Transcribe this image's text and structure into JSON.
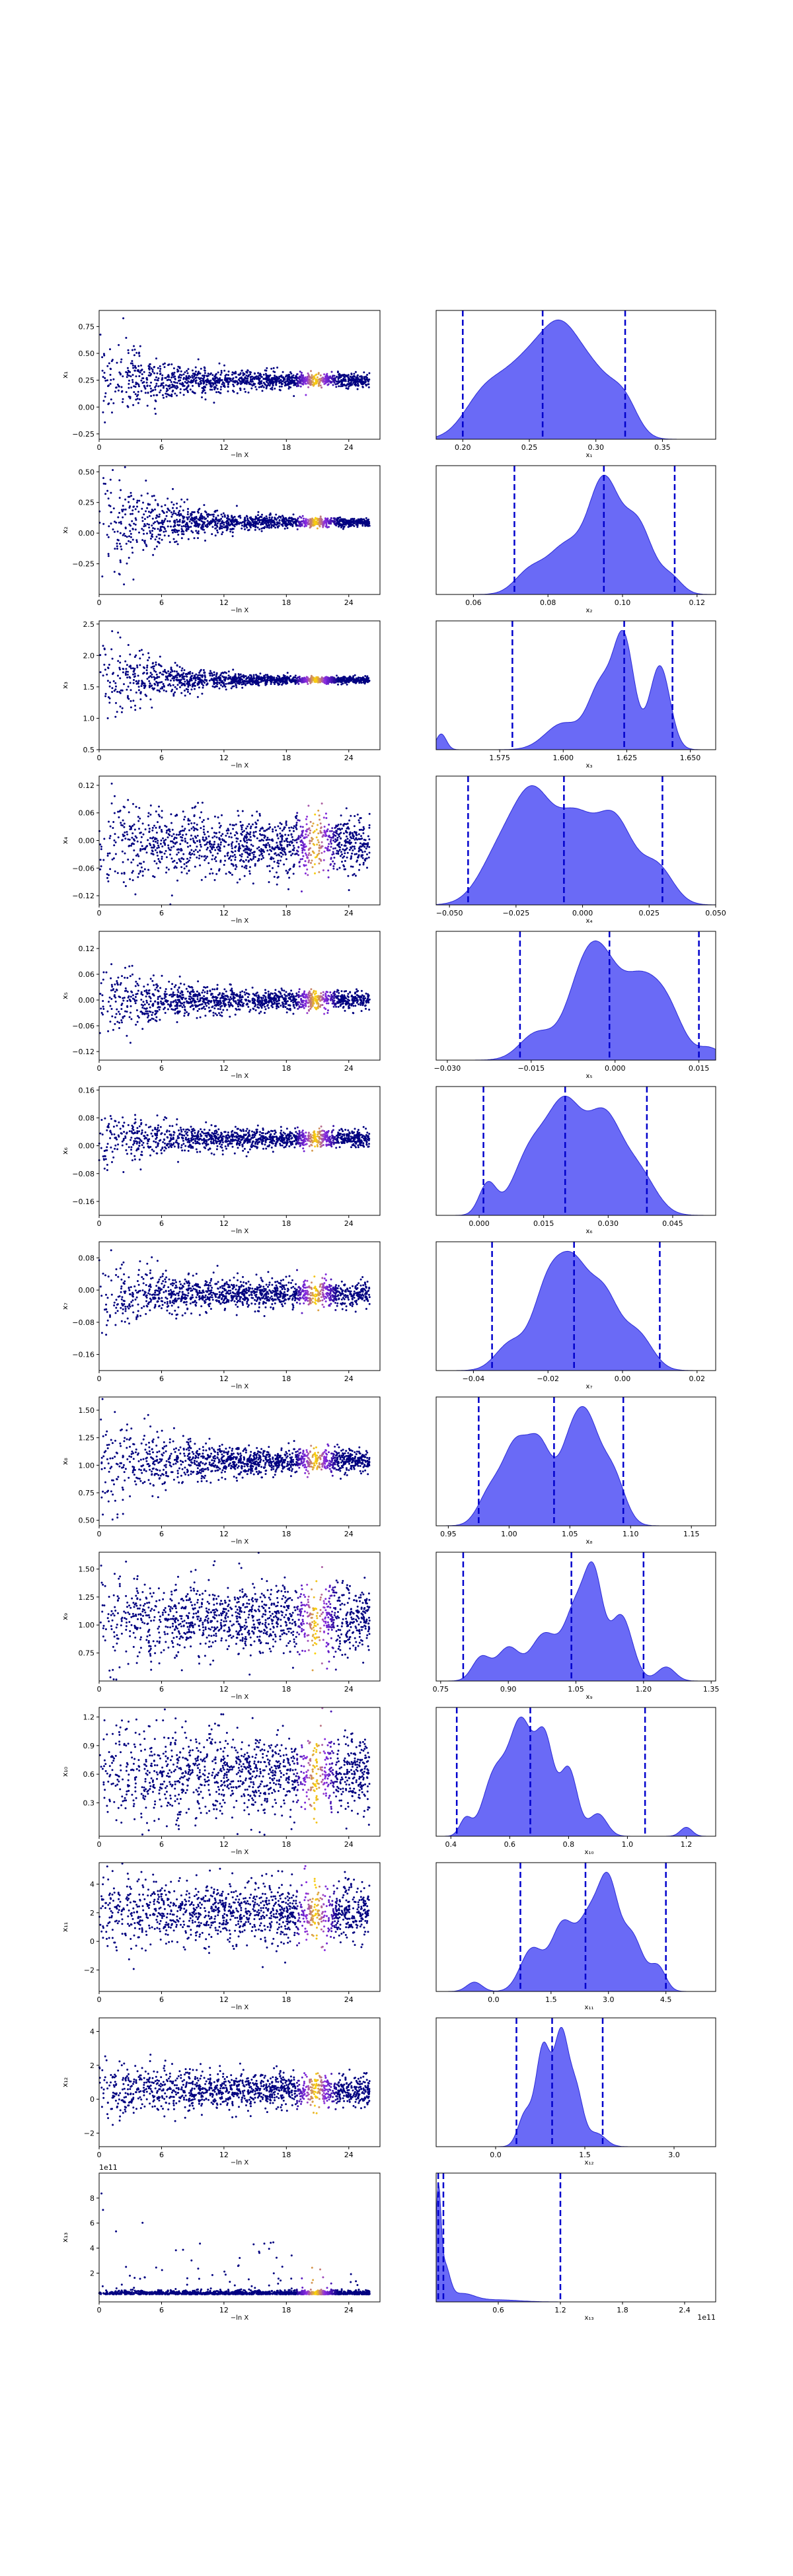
{
  "colors": {
    "scatter_low": "#000080",
    "scatter_mid": "#8a2be2",
    "scatter_high": "#ffd700",
    "density_fill": "#5a5af5",
    "density_line": "#2b2bd6",
    "quantile_line": "#0000cc"
  },
  "chart_data": [
    {
      "type": "scatter",
      "xlabel": "−ln X",
      "ylabel": "x₁",
      "xlim": [
        0,
        27
      ],
      "ylim": [
        -0.3,
        0.9
      ],
      "xticks": [
        "0",
        "6",
        "12",
        "18",
        "24"
      ],
      "yticks": [
        "0.75",
        "0.50",
        "0.25",
        "0.00",
        "−0.25"
      ],
      "ytick_values": [
        0.75,
        0.5,
        0.25,
        0.0,
        -0.25
      ],
      "center": 0.25,
      "spread0": 0.25,
      "spread1": 0.03,
      "density": {
        "xlabel": "x₁",
        "xlim": [
          0.18,
          0.39
        ],
        "xticks": [
          "0.20",
          "0.25",
          "0.30",
          "0.35"
        ],
        "xtick_values": [
          0.2,
          0.25,
          0.3,
          0.35
        ],
        "quantiles": [
          0.2,
          0.26,
          0.322
        ],
        "peaks": [
          [
            0.215,
            0.45,
            0.015
          ],
          [
            0.25,
            0.95,
            0.02
          ],
          [
            0.275,
            0.85,
            0.014
          ],
          [
            0.3,
            0.7,
            0.015
          ],
          [
            0.322,
            0.35,
            0.01
          ]
        ]
      }
    },
    {
      "type": "scatter",
      "xlabel": "−ln X",
      "ylabel": "x₂",
      "xlim": [
        0,
        27
      ],
      "ylim": [
        -0.5,
        0.55
      ],
      "xticks": [
        "0",
        "6",
        "12",
        "18",
        "24"
      ],
      "yticks": [
        "0.50",
        "0.25",
        "0.00",
        "−0.25"
      ],
      "ytick_values": [
        0.5,
        0.25,
        0.0,
        -0.25
      ],
      "center": 0.09,
      "spread0": 0.3,
      "spread1": 0.015,
      "density": {
        "xlabel": "x₂",
        "xlim": [
          0.05,
          0.125
        ],
        "xticks": [
          "0.06",
          "0.08",
          "0.10",
          "0.12"
        ],
        "xtick_values": [
          0.06,
          0.08,
          0.1,
          0.12
        ],
        "quantiles": [
          0.071,
          0.095,
          0.114
        ],
        "peaks": [
          [
            0.075,
            0.2,
            0.004
          ],
          [
            0.085,
            0.45,
            0.005
          ],
          [
            0.095,
            1.0,
            0.004
          ],
          [
            0.104,
            0.65,
            0.004
          ],
          [
            0.113,
            0.15,
            0.003
          ]
        ]
      }
    },
    {
      "type": "scatter",
      "xlabel": "−ln X",
      "ylabel": "x₃",
      "xlim": [
        0,
        27
      ],
      "ylim": [
        0.5,
        2.55
      ],
      "xticks": [
        "0",
        "6",
        "12",
        "18",
        "24"
      ],
      "yticks": [
        "2.5",
        "2.0",
        "1.5",
        "1.0",
        "0.5"
      ],
      "ytick_values": [
        2.5,
        2.0,
        1.5,
        1.0,
        0.5
      ],
      "center": 1.61,
      "spread0": 0.45,
      "spread1": 0.02,
      "density": {
        "xlabel": "x₃",
        "xlim": [
          1.55,
          1.66
        ],
        "xticks": [
          "1.575",
          "1.600",
          "1.625",
          "1.650"
        ],
        "xtick_values": [
          1.575,
          1.6,
          1.625,
          1.65
        ],
        "quantiles": [
          1.58,
          1.624,
          1.643
        ],
        "peaks": [
          [
            1.552,
            0.15,
            0.002
          ],
          [
            1.6,
            0.25,
            0.007
          ],
          [
            1.615,
            0.6,
            0.005
          ],
          [
            1.624,
            1.0,
            0.004
          ],
          [
            1.638,
            0.8,
            0.004
          ]
        ]
      }
    },
    {
      "type": "scatter",
      "xlabel": "−ln X",
      "ylabel": "x₄",
      "xlim": [
        0,
        27
      ],
      "ylim": [
        -0.14,
        0.14
      ],
      "xticks": [
        "0",
        "6",
        "12",
        "18",
        "24"
      ],
      "yticks": [
        "0.12",
        "0.06",
        "0.00",
        "−0.06",
        "−0.12"
      ],
      "ytick_values": [
        0.12,
        0.06,
        0.0,
        -0.06,
        -0.12
      ],
      "center": -0.01,
      "spread0": 0.06,
      "spread1": 0.03,
      "density": {
        "xlabel": "x₄",
        "xlim": [
          -0.055,
          0.05
        ],
        "xticks": [
          "−0.050",
          "−0.025",
          "0.000",
          "0.025",
          "0.050"
        ],
        "xtick_values": [
          -0.05,
          -0.025,
          0.0,
          0.025,
          0.05
        ],
        "quantiles": [
          -0.043,
          -0.007,
          0.03
        ],
        "peaks": [
          [
            -0.03,
            0.6,
            0.008
          ],
          [
            -0.018,
            1.0,
            0.007
          ],
          [
            -0.003,
            0.85,
            0.007
          ],
          [
            0.012,
            0.9,
            0.007
          ],
          [
            0.028,
            0.4,
            0.006
          ]
        ]
      }
    },
    {
      "type": "scatter",
      "xlabel": "−ln X",
      "ylabel": "x₅",
      "xlim": [
        0,
        27
      ],
      "ylim": [
        -0.14,
        0.16
      ],
      "xticks": [
        "0",
        "6",
        "12",
        "18",
        "24"
      ],
      "yticks": [
        "0.12",
        "0.06",
        "0.00",
        "−0.06",
        "−0.12"
      ],
      "ytick_values": [
        0.12,
        0.06,
        0.0,
        -0.06,
        -0.12
      ],
      "center": 0.0,
      "spread0": 0.05,
      "spread1": 0.01,
      "density": {
        "xlabel": "x₅",
        "xlim": [
          -0.032,
          0.018
        ],
        "xticks": [
          "−0.030",
          "−0.015",
          "0.000",
          "0.015"
        ],
        "xtick_values": [
          -0.03,
          -0.015,
          0.0,
          0.015
        ],
        "quantiles": [
          -0.017,
          -0.001,
          0.015
        ],
        "peaks": [
          [
            -0.014,
            0.35,
            0.003
          ],
          [
            -0.006,
            0.9,
            0.003
          ],
          [
            -0.002,
            1.0,
            0.003
          ],
          [
            0.004,
            0.85,
            0.003
          ],
          [
            0.009,
            0.7,
            0.003
          ],
          [
            0.017,
            0.15,
            0.002
          ]
        ]
      }
    },
    {
      "type": "scatter",
      "xlabel": "−ln X",
      "ylabel": "x₆",
      "xlim": [
        0,
        27
      ],
      "ylim": [
        -0.2,
        0.17
      ],
      "xticks": [
        "0",
        "6",
        "12",
        "18",
        "24"
      ],
      "yticks": [
        "0.16",
        "0.08",
        "0.00",
        "−0.08",
        "−0.16"
      ],
      "ytick_values": [
        0.16,
        0.08,
        0.0,
        -0.08,
        -0.16
      ],
      "center": 0.02,
      "spread0": 0.05,
      "spread1": 0.012,
      "density": {
        "xlabel": "x₆",
        "xlim": [
          -0.01,
          0.055
        ],
        "xticks": [
          "0.000",
          "0.015",
          "0.030",
          "0.045"
        ],
        "xtick_values": [
          0.0,
          0.015,
          0.03,
          0.045
        ],
        "quantiles": [
          0.001,
          0.02,
          0.039
        ],
        "peaks": [
          [
            0.002,
            0.3,
            0.002
          ],
          [
            0.012,
            0.6,
            0.004
          ],
          [
            0.02,
            1.0,
            0.004
          ],
          [
            0.029,
            0.9,
            0.004
          ],
          [
            0.037,
            0.4,
            0.004
          ]
        ]
      }
    },
    {
      "type": "scatter",
      "xlabel": "−ln X",
      "ylabel": "x₇",
      "xlim": [
        0,
        27
      ],
      "ylim": [
        -0.2,
        0.12
      ],
      "xticks": [
        "0",
        "6",
        "12",
        "18",
        "24"
      ],
      "yticks": [
        "0.08",
        "0.00",
        "−0.08",
        "−0.16"
      ],
      "ytick_values": [
        0.08,
        0.0,
        -0.08,
        -0.16
      ],
      "center": -0.01,
      "spread0": 0.05,
      "spread1": 0.015,
      "density": {
        "xlabel": "x₇",
        "xlim": [
          -0.05,
          0.025
        ],
        "xticks": [
          "−0.04",
          "−0.02",
          "0.00",
          "0.02"
        ],
        "xtick_values": [
          -0.04,
          -0.02,
          0.0,
          0.02
        ],
        "quantiles": [
          -0.035,
          -0.013,
          0.01
        ],
        "peaks": [
          [
            -0.03,
            0.3,
            0.004
          ],
          [
            -0.02,
            0.9,
            0.004
          ],
          [
            -0.013,
            1.0,
            0.004
          ],
          [
            -0.005,
            0.8,
            0.004
          ],
          [
            0.004,
            0.4,
            0.004
          ]
        ]
      }
    },
    {
      "type": "scatter",
      "xlabel": "−ln X",
      "ylabel": "x₈",
      "xlim": [
        0,
        27
      ],
      "ylim": [
        0.45,
        1.62
      ],
      "xticks": [
        "0",
        "6",
        "12",
        "18",
        "24"
      ],
      "yticks": [
        "1.50",
        "1.25",
        "1.00",
        "0.75",
        "0.50"
      ],
      "ytick_values": [
        1.5,
        1.25,
        1.0,
        0.75,
        0.5
      ],
      "center": 1.04,
      "spread0": 0.3,
      "spread1": 0.05,
      "density": {
        "xlabel": "x₈",
        "xlim": [
          0.94,
          1.17
        ],
        "xticks": [
          "0.95",
          "1.00",
          "1.05",
          "1.10",
          "1.15"
        ],
        "xtick_values": [
          0.95,
          1.0,
          1.05,
          1.1,
          1.15
        ],
        "quantiles": [
          0.975,
          1.037,
          1.094
        ],
        "peaks": [
          [
            0.985,
            0.4,
            0.01
          ],
          [
            1.005,
            0.85,
            0.01
          ],
          [
            1.025,
            0.9,
            0.01
          ],
          [
            1.05,
            0.8,
            0.01
          ],
          [
            1.065,
            1.0,
            0.01
          ],
          [
            1.085,
            0.6,
            0.01
          ]
        ]
      }
    },
    {
      "type": "scatter",
      "xlabel": "−ln X",
      "ylabel": "x₉",
      "xlim": [
        0,
        27
      ],
      "ylim": [
        0.5,
        1.65
      ],
      "xticks": [
        "0",
        "6",
        "12",
        "18",
        "24"
      ],
      "yticks": [
        "1.50",
        "1.25",
        "1.00",
        "0.75"
      ],
      "ytick_values": [
        1.5,
        1.25,
        1.0,
        0.75
      ],
      "center": 1.05,
      "spread0": 0.25,
      "spread1": 0.15,
      "density": {
        "xlabel": "x₉",
        "xlim": [
          0.74,
          1.36
        ],
        "xticks": [
          "0.75",
          "0.90",
          "1.05",
          "1.20",
          "1.35"
        ],
        "xtick_values": [
          0.75,
          0.9,
          1.05,
          1.2,
          1.35
        ],
        "quantiles": [
          0.8,
          1.04,
          1.2
        ],
        "peaks": [
          [
            0.84,
            0.25,
            0.02
          ],
          [
            0.9,
            0.35,
            0.025
          ],
          [
            0.98,
            0.5,
            0.03
          ],
          [
            1.05,
            0.75,
            0.025
          ],
          [
            1.09,
            1.0,
            0.02
          ],
          [
            1.15,
            0.7,
            0.025
          ],
          [
            1.25,
            0.15,
            0.02
          ]
        ]
      }
    },
    {
      "type": "scatter",
      "xlabel": "−ln X",
      "ylabel": "x₁₀",
      "xlim": [
        0,
        27
      ],
      "ylim": [
        -0.05,
        1.3
      ],
      "xticks": [
        "0",
        "6",
        "12",
        "18",
        "24"
      ],
      "yticks": [
        "1.2",
        "0.9",
        "0.6",
        "0.3"
      ],
      "ytick_values": [
        1.2,
        0.9,
        0.6,
        0.3
      ],
      "center": 0.6,
      "spread0": 0.35,
      "spread1": 0.2,
      "density": {
        "xlabel": "x₁₀",
        "xlim": [
          0.35,
          1.3
        ],
        "xticks": [
          "0.4",
          "0.6",
          "0.8",
          "1.0",
          "1.2"
        ],
        "xtick_values": [
          0.4,
          0.6,
          0.8,
          1.0,
          1.2
        ],
        "quantiles": [
          0.42,
          0.67,
          1.06
        ],
        "peaks": [
          [
            0.45,
            0.15,
            0.02
          ],
          [
            0.55,
            0.55,
            0.04
          ],
          [
            0.64,
            1.0,
            0.04
          ],
          [
            0.72,
            0.8,
            0.03
          ],
          [
            0.8,
            0.6,
            0.03
          ],
          [
            0.9,
            0.2,
            0.03
          ],
          [
            1.2,
            0.08,
            0.02
          ]
        ]
      }
    },
    {
      "type": "scatter",
      "xlabel": "−ln X",
      "ylabel": "x₁₁",
      "xlim": [
        0,
        27
      ],
      "ylim": [
        -3.5,
        5.5
      ],
      "xticks": [
        "0",
        "6",
        "12",
        "18",
        "24"
      ],
      "yticks": [
        "4",
        "2",
        "0",
        "−2"
      ],
      "ytick_values": [
        4,
        2,
        0,
        -2
      ],
      "center": 2.0,
      "spread0": 1.5,
      "spread1": 1.0,
      "density": {
        "xlabel": "x₁₁",
        "xlim": [
          -1.5,
          5.8
        ],
        "xticks": [
          "0.0",
          "1.5",
          "3.0",
          "4.5"
        ],
        "xtick_values": [
          0.0,
          1.5,
          3.0,
          4.5
        ],
        "quantiles": [
          0.7,
          2.4,
          4.5
        ],
        "peaks": [
          [
            -0.5,
            0.1,
            0.2
          ],
          [
            1.0,
            0.45,
            0.3
          ],
          [
            1.8,
            0.7,
            0.3
          ],
          [
            2.5,
            0.75,
            0.3
          ],
          [
            3.0,
            1.0,
            0.25
          ],
          [
            3.6,
            0.6,
            0.3
          ],
          [
            4.3,
            0.25,
            0.2
          ]
        ]
      }
    },
    {
      "type": "scatter",
      "xlabel": "−ln X",
      "ylabel": "x₁₂",
      "xlim": [
        0,
        27
      ],
      "ylim": [
        -2.8,
        4.8
      ],
      "xticks": [
        "0",
        "6",
        "12",
        "18",
        "24"
      ],
      "yticks": [
        "4",
        "2",
        "0",
        "−2"
      ],
      "ytick_values": [
        4,
        2,
        0,
        -2
      ],
      "center": 0.5,
      "spread0": 1.0,
      "spread1": 0.5,
      "density": {
        "xlabel": "x₁₂",
        "xlim": [
          -1.0,
          3.7
        ],
        "xticks": [
          "0.0",
          "1.5",
          "3.0"
        ],
        "xtick_values": [
          0.0,
          1.5,
          3.0
        ],
        "quantiles": [
          0.35,
          0.95,
          1.8
        ],
        "peaks": [
          [
            0.5,
            0.3,
            0.12
          ],
          [
            0.8,
            0.9,
            0.12
          ],
          [
            1.1,
            1.0,
            0.12
          ],
          [
            1.35,
            0.5,
            0.12
          ],
          [
            1.7,
            0.12,
            0.15
          ]
        ]
      }
    },
    {
      "type": "scatter",
      "xlabel": "−ln X",
      "ylabel": "x₁₃",
      "xlim": [
        0,
        27
      ],
      "ylim": [
        -0.3,
        10
      ],
      "xticks": [
        "0",
        "6",
        "12",
        "18",
        "24"
      ],
      "yticks": [
        "8",
        "6",
        "4",
        "2"
      ],
      "ytick_values": [
        8,
        6,
        4,
        2
      ],
      "center": 0.3,
      "spread0": 0.2,
      "spread1": 0.05,
      "heavy_tail": true,
      "exponent": "1e11",
      "density": {
        "xlabel": "x₁₃",
        "xlim": [
          0.0,
          2.7
        ],
        "xticks": [
          "0.6",
          "1.2",
          "1.8",
          "2.4"
        ],
        "xtick_values": [
          0.6,
          1.2,
          1.8,
          2.4
        ],
        "quantiles": [
          0.02,
          0.07,
          1.2
        ],
        "exponent": "1e11",
        "peaks": [
          [
            0.02,
            1.0,
            0.025
          ],
          [
            0.08,
            0.35,
            0.05
          ],
          [
            0.25,
            0.08,
            0.12
          ],
          [
            0.6,
            0.02,
            0.2
          ]
        ]
      }
    }
  ]
}
